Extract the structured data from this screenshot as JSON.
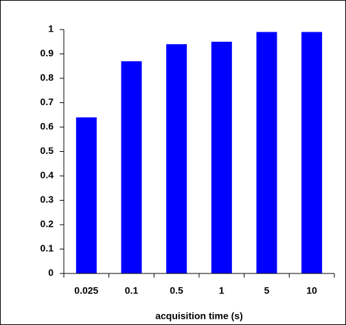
{
  "chart_data": {
    "type": "bar",
    "x_label": "acquisition time (s)",
    "categories": [
      "0.025",
      "0.1",
      "0.5",
      "1",
      "5",
      "10"
    ],
    "values": [
      0.64,
      0.87,
      0.94,
      0.95,
      0.99,
      0.99
    ],
    "color": "#0000ff",
    "ylim": [
      0,
      1
    ],
    "yticks": [
      0,
      0.1,
      0.2,
      0.3,
      0.4,
      0.5,
      0.6,
      0.7,
      0.8,
      0.9,
      1
    ],
    "grid": false
  }
}
